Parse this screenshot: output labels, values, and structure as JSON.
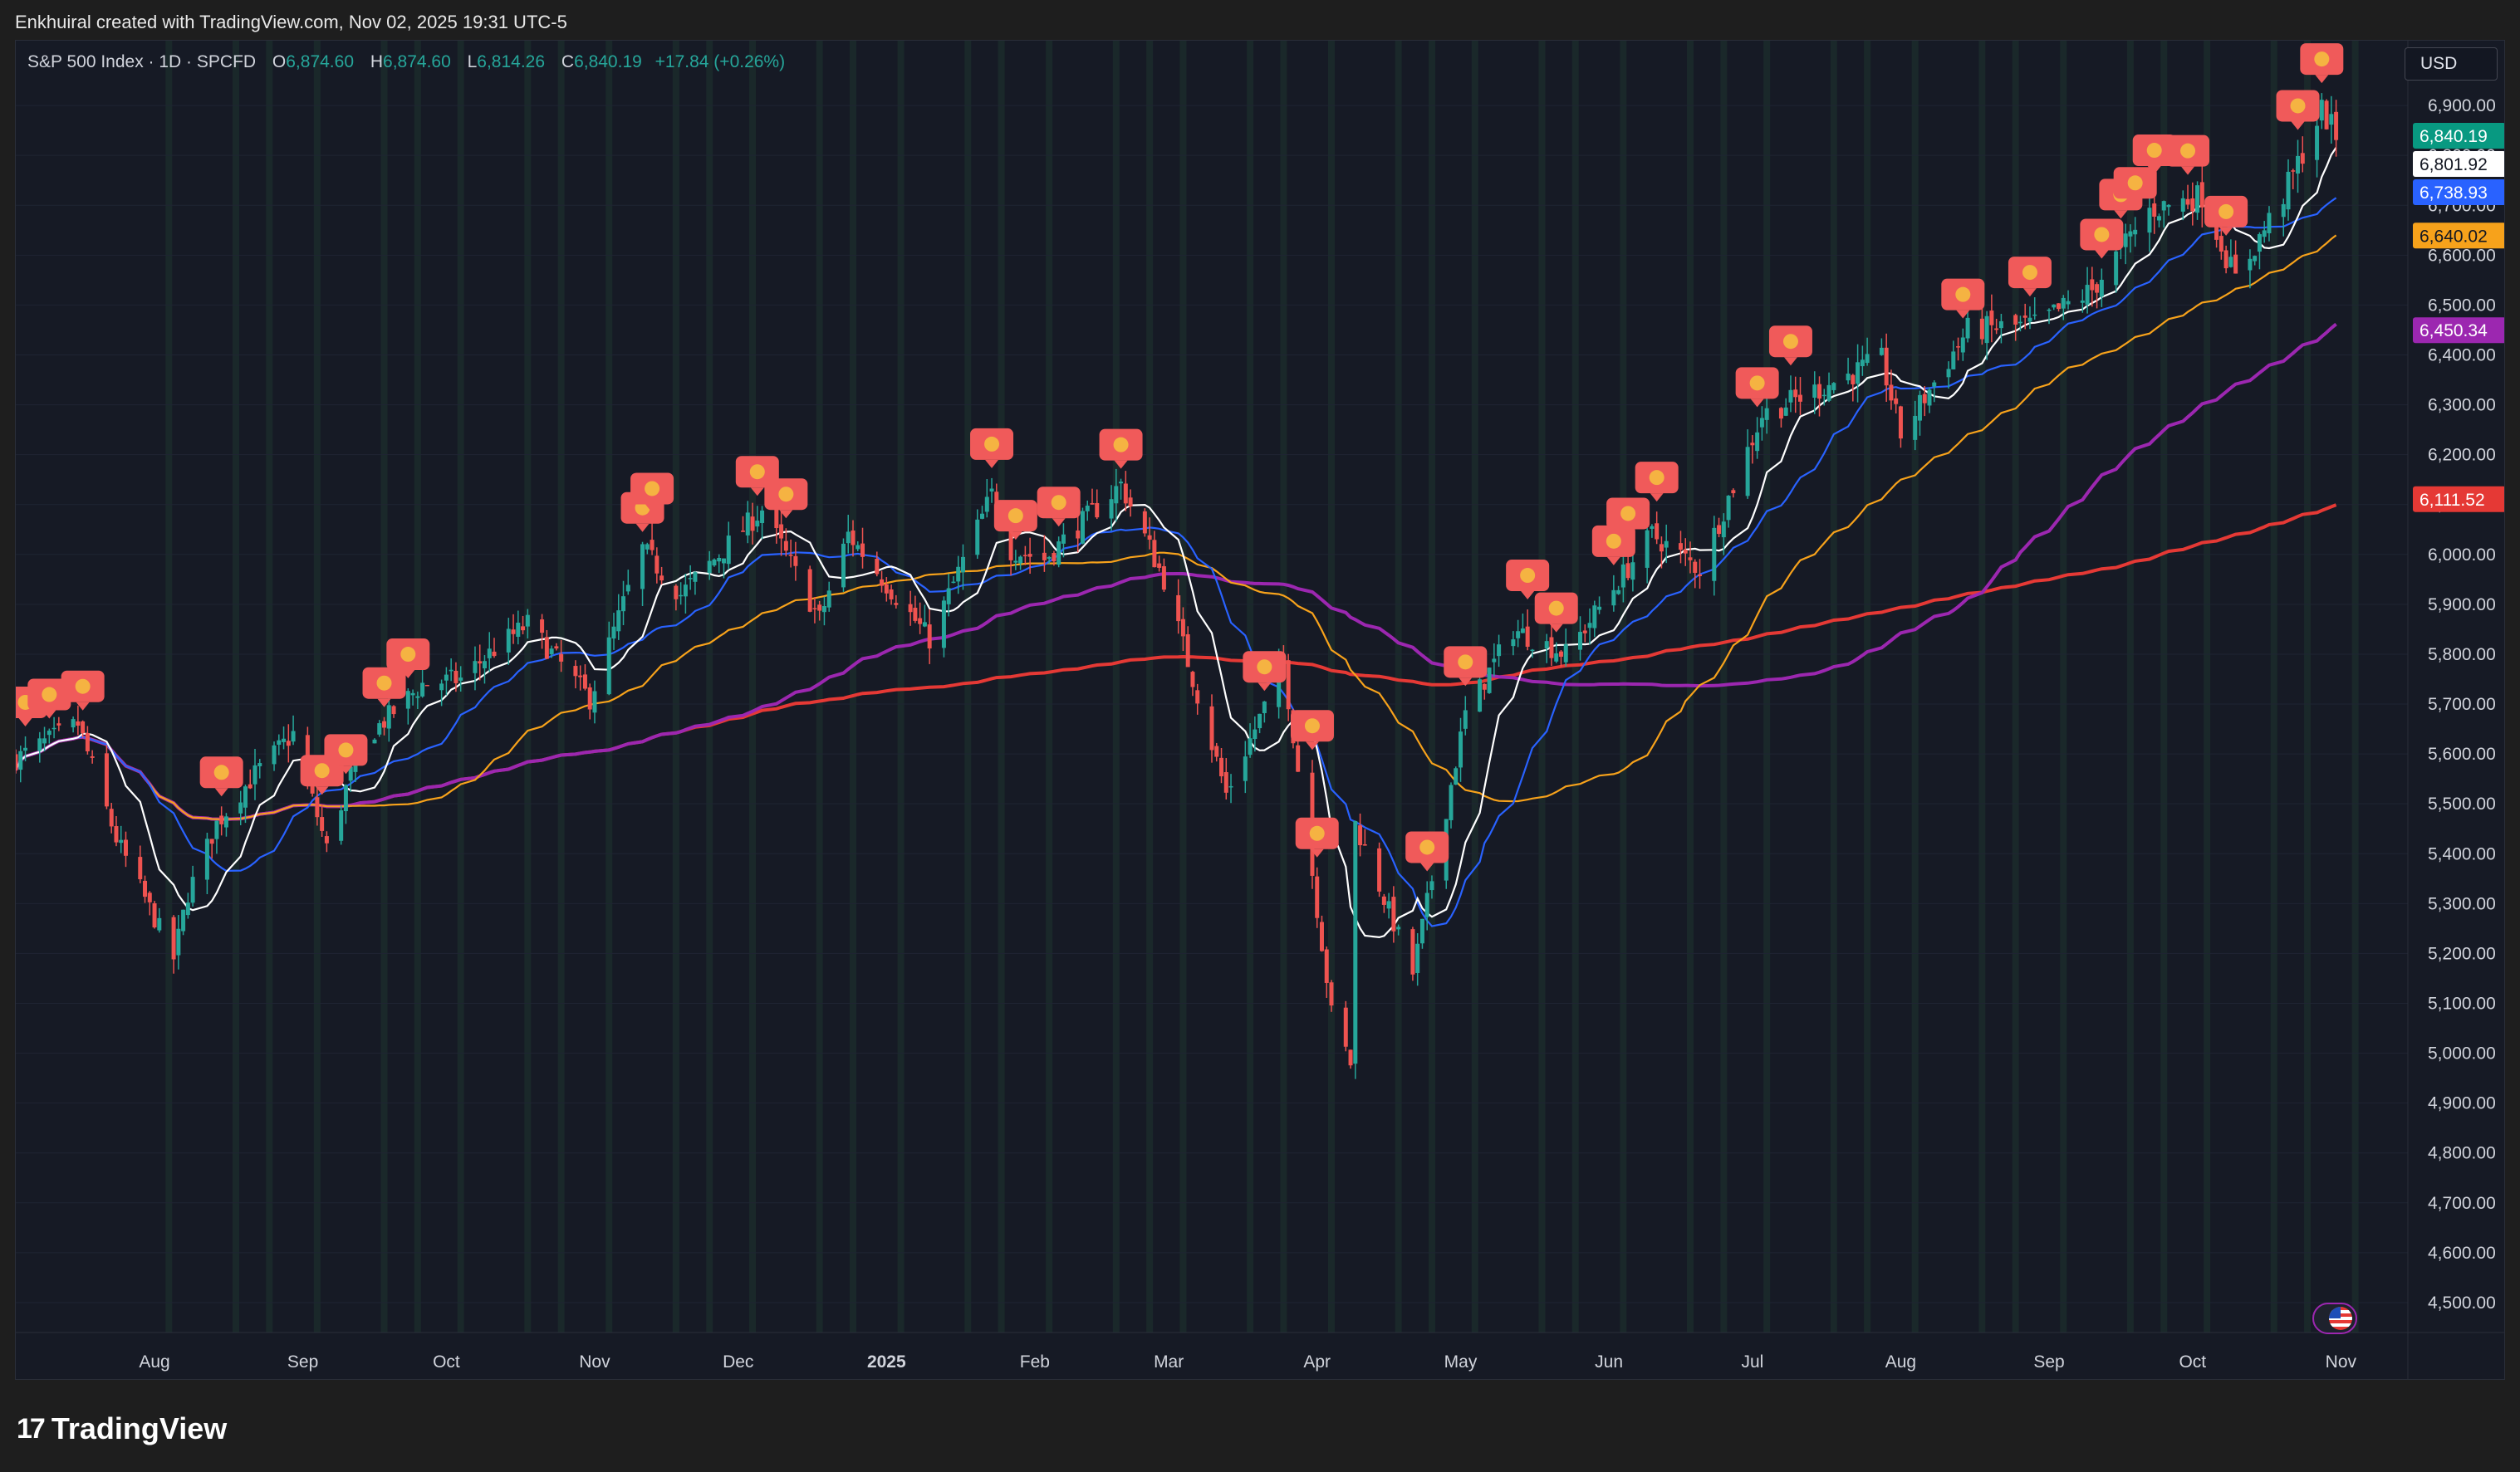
{
  "attribution": "Enkhuiral created with TradingView.com, Nov 02, 2025 19:31 UTC-5",
  "legend": {
    "symbol": "S&P 500 Index · 1D · SPCFD",
    "open_label": "O",
    "open": "6,874.60",
    "high_label": "H",
    "high": "6,874.60",
    "low_label": "L",
    "low": "6,814.26",
    "close_label": "C",
    "close": "6,840.19",
    "change": "+17.84 (+0.26%)"
  },
  "currency_button": "USD",
  "brand": "TradingView",
  "colors": {
    "up": "#26a69a",
    "down": "#ef5350",
    "grid": "#1f2433",
    "session_shade": "#1f3a30",
    "ma_10": "#ffffff",
    "ma_20": "#2962ff",
    "ma_50": "#f7a21b",
    "ma_100": "#9c27b0",
    "ma_200": "#e53935",
    "marker": "#f05a5a"
  },
  "chart_data": {
    "type": "candlestick",
    "y_axis_ticks": [
      "4,500.00",
      "4,600.00",
      "4,700.00",
      "4,800.00",
      "4,900.00",
      "5,000.00",
      "5,100.00",
      "5,200.00",
      "5,300.00",
      "5,400.00",
      "5,500.00",
      "5,600.00",
      "5,700.00",
      "5,800.00",
      "5,900.00",
      "6,000.00",
      "6,100.00",
      "6,200.00",
      "6,300.00",
      "6,400.00",
      "6,500.00",
      "6,600.00",
      "6,700.00",
      "6,800.00",
      "6,900.00"
    ],
    "ylim": [
      4440,
      7030
    ],
    "x_axis_labels": [
      "Aug",
      "Sep",
      "Oct",
      "Nov",
      "Dec",
      "2025",
      "Feb",
      "Mar",
      "Apr",
      "May",
      "Jun",
      "Jul",
      "Aug",
      "Sep",
      "Oct",
      "Nov"
    ],
    "x_label_dates": [
      "2024-08-01",
      "2024-09-01",
      "2024-10-01",
      "2024-11-01",
      "2024-12-01",
      "2025-01-01",
      "2025-02-01",
      "2025-03-01",
      "2025-04-01",
      "2025-05-01",
      "2025-06-01",
      "2025-07-01",
      "2025-08-01",
      "2025-09-01",
      "2025-10-01",
      "2025-11-01"
    ],
    "x_range": [
      "2024-07-03",
      "2025-11-15"
    ],
    "price_path": [
      [
        "2024-07-03",
        5590
      ],
      [
        "2024-07-16",
        5660
      ],
      [
        "2024-07-24",
        5430
      ],
      [
        "2024-08-05",
        5190
      ],
      [
        "2024-08-08",
        5320
      ],
      [
        "2024-08-14",
        5460
      ],
      [
        "2024-08-22",
        5560
      ],
      [
        "2024-08-30",
        5640
      ],
      [
        "2024-09-06",
        5410
      ],
      [
        "2024-09-13",
        5620
      ],
      [
        "2024-09-26",
        5740
      ],
      [
        "2024-10-04",
        5750
      ],
      [
        "2024-10-11",
        5810
      ],
      [
        "2024-10-18",
        5860
      ],
      [
        "2024-10-31",
        5710
      ],
      [
        "2024-11-11",
        6010
      ],
      [
        "2024-11-19",
        5920
      ],
      [
        "2024-12-06",
        6090
      ],
      [
        "2024-12-18",
        5870
      ],
      [
        "2024-12-24",
        6040
      ],
      [
        "2025-01-10",
        5830
      ],
      [
        "2025-01-23",
        6120
      ],
      [
        "2025-01-27",
        6010
      ],
      [
        "2025-02-03",
        5990
      ],
      [
        "2025-02-19",
        6140
      ],
      [
        "2025-02-28",
        5950
      ],
      [
        "2025-03-13",
        5520
      ],
      [
        "2025-03-25",
        5780
      ],
      [
        "2025-04-04",
        5080
      ],
      [
        "2025-04-08",
        4980
      ],
      [
        "2025-04-09",
        5460
      ],
      [
        "2025-04-21",
        5160
      ],
      [
        "2025-05-02",
        5680
      ],
      [
        "2025-05-12",
        5850
      ],
      [
        "2025-05-23",
        5800
      ],
      [
        "2025-06-10",
        6040
      ],
      [
        "2025-06-20",
        5970
      ],
      [
        "2025-07-03",
        6280
      ],
      [
        "2025-07-28",
        6390
      ],
      [
        "2025-08-01",
        6240
      ],
      [
        "2025-08-15",
        6450
      ],
      [
        "2025-08-29",
        6460
      ],
      [
        "2025-09-10",
        6530
      ],
      [
        "2025-09-22",
        6690
      ],
      [
        "2025-10-03",
        6720
      ],
      [
        "2025-10-10",
        6550
      ],
      [
        "2025-10-20",
        6720
      ],
      [
        "2025-10-28",
        6890
      ],
      [
        "2025-10-31",
        6840
      ]
    ],
    "last_values": [
      {
        "name": "",
        "value": "6,840.19",
        "bg": "#089981",
        "fg": "#ffffff"
      },
      {
        "name": "",
        "value": "6,801.92",
        "bg": "#ffffff",
        "fg": "#131722"
      },
      {
        "name": "",
        "value": "6,738.93",
        "bg": "#2962ff",
        "fg": "#ffffff"
      },
      {
        "name": "",
        "value": "6,640.02",
        "bg": "#f7a21b",
        "fg": "#131722"
      },
      {
        "name": "",
        "value": "6,450.34",
        "bg": "#9c27b0",
        "fg": "#ffffff"
      },
      {
        "name": "",
        "value": "6,111.52",
        "bg": "#e53935",
        "fg": "#ffffff"
      }
    ],
    "moving_averages": [
      {
        "name": "",
        "period": 10,
        "color": "#ffffff"
      },
      {
        "name": "",
        "period": 20,
        "color": "#2962ff"
      },
      {
        "name": "",
        "period": 50,
        "color": "#f7a21b"
      },
      {
        "name": "",
        "period": 100,
        "color": "#9c27b0"
      },
      {
        "name": "",
        "period": 200,
        "color": "#e53935"
      }
    ],
    "signal_markers": [
      "2024-07-05",
      "2024-07-10",
      "2024-07-17",
      "2024-08-15",
      "2024-09-05",
      "2024-09-10",
      "2024-09-18",
      "2024-09-23",
      "2024-11-11",
      "2024-11-13",
      "2024-12-05",
      "2024-12-11",
      "2025-01-23",
      "2025-01-28",
      "2025-02-06",
      "2025-02-19",
      "2025-03-21",
      "2025-03-31",
      "2025-04-01",
      "2025-04-24",
      "2025-05-02",
      "2025-05-15",
      "2025-05-21",
      "2025-06-02",
      "2025-06-05",
      "2025-06-11",
      "2025-07-02",
      "2025-07-09",
      "2025-08-14",
      "2025-08-28",
      "2025-09-12",
      "2025-09-16",
      "2025-09-19",
      "2025-09-23",
      "2025-09-30",
      "2025-10-08",
      "2025-10-23",
      "2025-10-28"
    ],
    "grid": true,
    "session_shading": true
  }
}
